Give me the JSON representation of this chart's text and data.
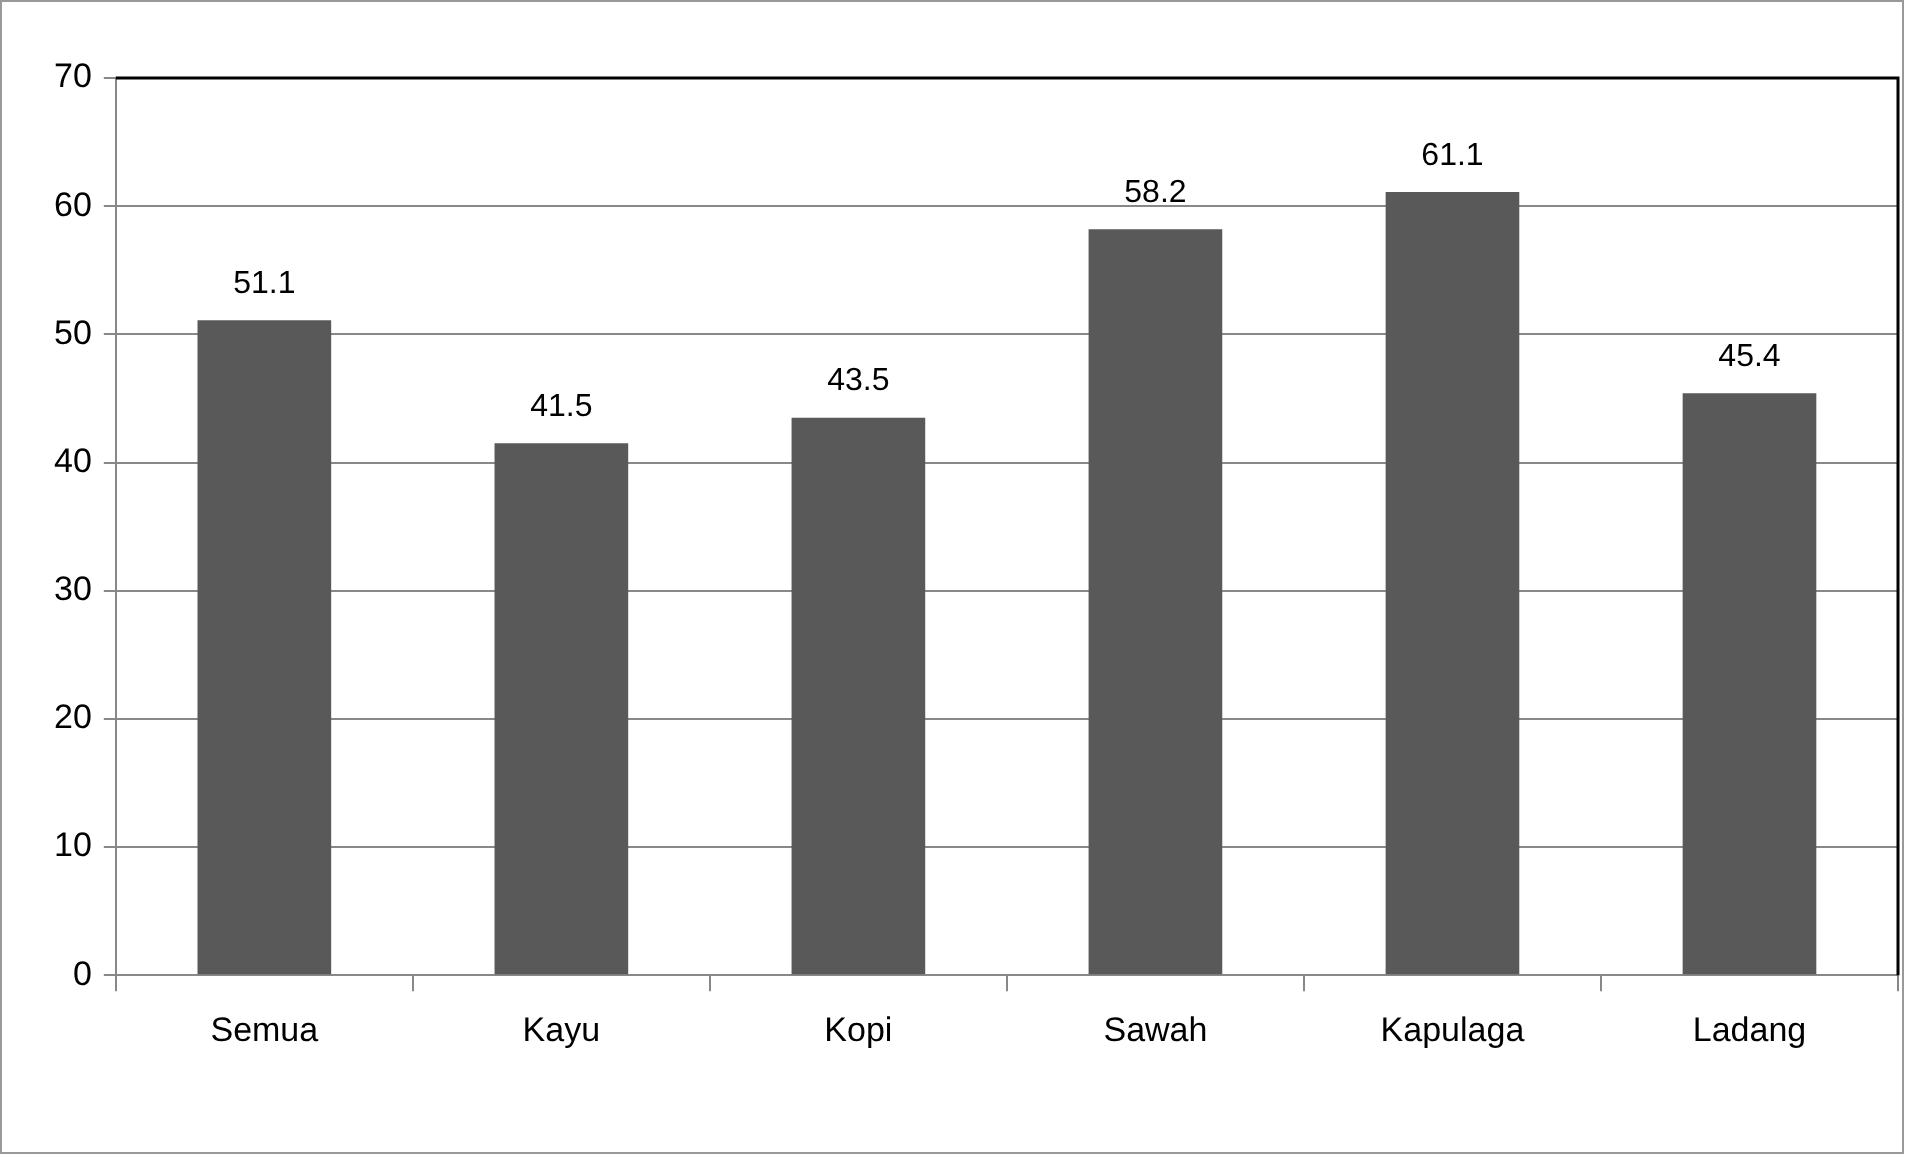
{
  "chart_data": {
    "type": "bar",
    "categories": [
      "Semua",
      "Kayu",
      "Kopi",
      "Sawah",
      "Kapulaga",
      "Ladang"
    ],
    "values": [
      51.1,
      41.5,
      43.5,
      58.2,
      61.1,
      45.4
    ],
    "color": "#595959",
    "ylim": [
      0,
      70
    ],
    "yticks": [
      0,
      10,
      20,
      30,
      40,
      50,
      60,
      70
    ],
    "grid": "y",
    "legend": false,
    "data_labels": true
  }
}
